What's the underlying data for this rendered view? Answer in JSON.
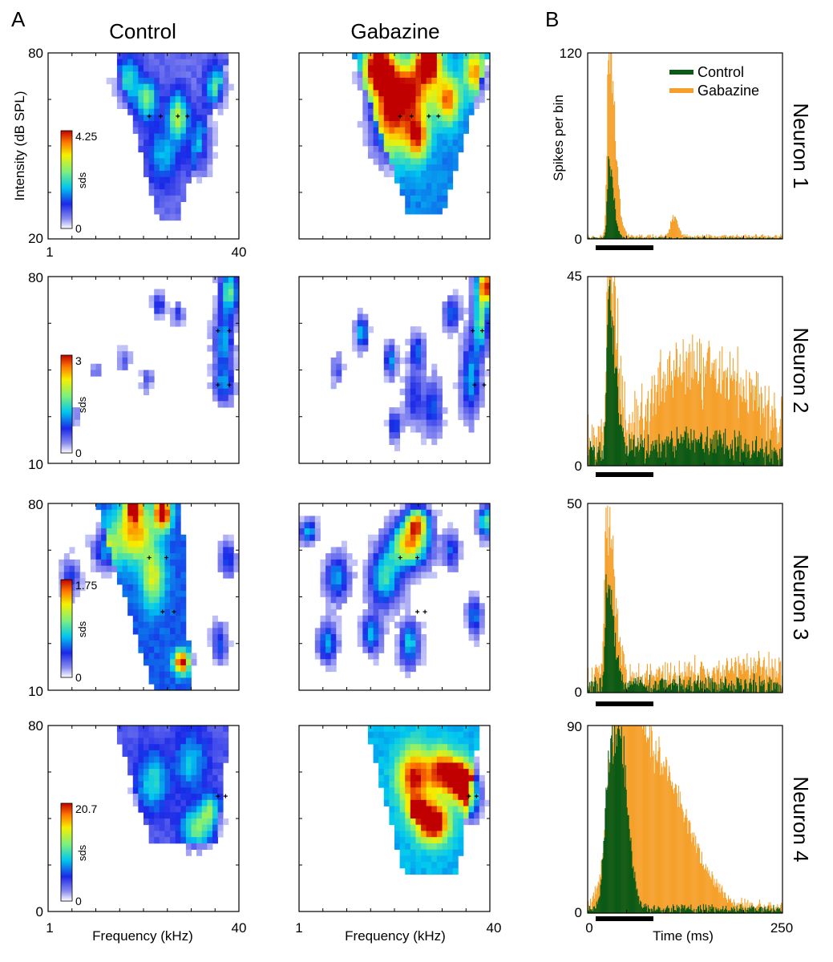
{
  "panel_labels": [
    "A",
    "B"
  ],
  "column_titles": [
    "Control",
    "Gabazine"
  ],
  "frequency_axis": {
    "label": "Frequency (kHz)",
    "min": "1",
    "max": "40"
  },
  "intensity_axis": {
    "label": "Intensity (dB SPL)"
  },
  "psth_axis": {
    "ylabel": "Spikes per bin",
    "xlabel": "Time (ms)",
    "xmin": "0",
    "xmax": "250"
  },
  "legend": [
    {
      "name": "Control",
      "color": "#0b5a16"
    },
    {
      "name": "Gabazine",
      "color": "#f5a02a"
    }
  ],
  "colorbar_unit": "sds",
  "colormap": "jet",
  "chart_data": [
    {
      "type": "heatmap",
      "neuron": 1,
      "condition": "Control",
      "ylim": [
        20,
        80
      ],
      "yticks": [
        "80",
        "20"
      ],
      "colorbar_range": [
        "0",
        "4.25"
      ],
      "xlim_khz": [
        1,
        40
      ],
      "hotspots": [
        [
          0.42,
          0.85,
          0.35,
          0.06,
          0.12
        ],
        [
          0.52,
          0.75,
          0.45,
          0.05,
          0.1
        ],
        [
          0.68,
          0.66,
          0.5,
          0.05,
          0.12
        ],
        [
          0.88,
          0.82,
          0.4,
          0.05,
          0.1
        ],
        [
          0.8,
          0.5,
          0.28,
          0.06,
          0.15
        ],
        [
          0.6,
          0.45,
          0.25,
          0.08,
          0.15
        ]
      ],
      "band": {
        "x0": [
          0.35,
          0.95
        ],
        "x1": [
          0.6,
          0.65
        ],
        "ybottom": 0.1,
        "level": 0.15
      },
      "markers": [
        [
          0.53,
          0.66
        ],
        [
          0.59,
          0.66
        ],
        [
          0.68,
          0.66
        ],
        [
          0.73,
          0.66
        ]
      ]
    },
    {
      "type": "heatmap",
      "neuron": 1,
      "condition": "Gabazine",
      "ylim": [
        20,
        80
      ],
      "xlim_khz": [
        1,
        40
      ],
      "hotspots": [
        [
          0.42,
          0.92,
          0.95,
          0.07,
          0.12
        ],
        [
          0.68,
          0.95,
          0.85,
          0.06,
          0.1
        ],
        [
          0.58,
          0.8,
          0.6,
          0.12,
          0.15
        ],
        [
          0.62,
          0.55,
          0.6,
          0.06,
          0.12
        ],
        [
          0.78,
          0.75,
          0.55,
          0.06,
          0.12
        ],
        [
          0.92,
          0.9,
          0.5,
          0.05,
          0.12
        ],
        [
          0.48,
          0.65,
          0.55,
          0.1,
          0.2
        ]
      ],
      "band": {
        "x0": [
          0.28,
          1.0
        ],
        "x1": [
          0.62,
          0.72
        ],
        "ybottom": 0.15,
        "level": 0.35
      },
      "markers": [
        [
          0.53,
          0.66
        ],
        [
          0.59,
          0.66
        ],
        [
          0.68,
          0.66
        ],
        [
          0.73,
          0.66
        ]
      ]
    },
    {
      "type": "heatmap",
      "neuron": 2,
      "condition": "Control",
      "ylim": [
        10,
        80
      ],
      "yticks": [
        "80",
        "10"
      ],
      "colorbar_range": [
        "0",
        "3"
      ],
      "xlim_khz": [
        1,
        40
      ],
      "hotspots": [
        [
          0.95,
          0.92,
          0.55,
          0.05,
          0.12
        ],
        [
          0.92,
          0.65,
          0.4,
          0.05,
          0.15
        ],
        [
          0.92,
          0.42,
          0.35,
          0.05,
          0.1
        ],
        [
          0.58,
          0.85,
          0.3,
          0.03,
          0.06
        ],
        [
          0.68,
          0.8,
          0.25,
          0.03,
          0.06
        ],
        [
          0.4,
          0.55,
          0.2,
          0.03,
          0.06
        ],
        [
          0.25,
          0.5,
          0.15,
          0.03,
          0.05
        ],
        [
          0.52,
          0.45,
          0.18,
          0.03,
          0.06
        ],
        [
          0.14,
          0.25,
          0.15,
          0.03,
          0.05
        ]
      ],
      "markers": [
        [
          0.89,
          0.71
        ],
        [
          0.95,
          0.71
        ],
        [
          0.89,
          0.42
        ],
        [
          0.95,
          0.42
        ]
      ]
    },
    {
      "type": "heatmap",
      "neuron": 2,
      "condition": "Gabazine",
      "ylim": [
        10,
        80
      ],
      "xlim_khz": [
        1,
        40
      ],
      "hotspots": [
        [
          0.98,
          0.95,
          0.95,
          0.05,
          0.1
        ],
        [
          0.95,
          0.75,
          0.55,
          0.04,
          0.15
        ],
        [
          0.9,
          0.45,
          0.4,
          0.05,
          0.2
        ],
        [
          0.33,
          0.7,
          0.45,
          0.03,
          0.08
        ],
        [
          0.48,
          0.55,
          0.4,
          0.03,
          0.08
        ],
        [
          0.62,
          0.6,
          0.3,
          0.04,
          0.1
        ],
        [
          0.5,
          0.2,
          0.35,
          0.03,
          0.08
        ],
        [
          0.7,
          0.3,
          0.3,
          0.05,
          0.15
        ],
        [
          0.6,
          0.35,
          0.25,
          0.05,
          0.15
        ],
        [
          0.2,
          0.5,
          0.2,
          0.03,
          0.08
        ],
        [
          0.8,
          0.8,
          0.35,
          0.04,
          0.08
        ]
      ],
      "markers": [
        [
          0.91,
          0.71
        ],
        [
          0.96,
          0.71
        ],
        [
          0.92,
          0.42
        ],
        [
          0.97,
          0.42
        ]
      ]
    },
    {
      "type": "heatmap",
      "neuron": 3,
      "condition": "Control",
      "ylim": [
        10,
        80
      ],
      "yticks": [
        "80",
        "10"
      ],
      "colorbar_range": [
        "0",
        "1.75"
      ],
      "xlim_khz": [
        1,
        40
      ],
      "hotspots": [
        [
          0.45,
          0.85,
          0.55,
          0.1,
          0.15
        ],
        [
          0.6,
          0.95,
          0.9,
          0.04,
          0.08
        ],
        [
          0.45,
          0.98,
          0.7,
          0.04,
          0.06
        ],
        [
          0.7,
          0.15,
          0.75,
          0.04,
          0.06
        ],
        [
          0.3,
          0.75,
          0.35,
          0.06,
          0.1
        ],
        [
          0.12,
          0.6,
          0.25,
          0.05,
          0.1
        ],
        [
          0.94,
          0.7,
          0.3,
          0.04,
          0.1
        ],
        [
          0.9,
          0.25,
          0.3,
          0.04,
          0.1
        ],
        [
          0.55,
          0.6,
          0.4,
          0.06,
          0.15
        ]
      ],
      "band": {
        "x0": [
          0.25,
          0.7
        ],
        "x1": [
          0.55,
          0.75
        ],
        "ybottom": 0.0,
        "level": 0.3
      },
      "markers": [
        [
          0.53,
          0.71
        ],
        [
          0.62,
          0.71
        ],
        [
          0.6,
          0.42
        ],
        [
          0.66,
          0.42
        ]
      ]
    },
    {
      "type": "heatmap",
      "neuron": 3,
      "condition": "Gabazine",
      "ylim": [
        10,
        80
      ],
      "xlim_khz": [
        1,
        40
      ],
      "hotspots": [
        [
          0.58,
          0.78,
          0.8,
          0.1,
          0.12
        ],
        [
          0.62,
          0.9,
          0.7,
          0.06,
          0.08
        ],
        [
          0.45,
          0.6,
          0.5,
          0.08,
          0.15
        ],
        [
          0.98,
          0.9,
          0.55,
          0.04,
          0.08
        ],
        [
          0.2,
          0.6,
          0.4,
          0.06,
          0.12
        ],
        [
          0.15,
          0.25,
          0.4,
          0.05,
          0.1
        ],
        [
          0.38,
          0.3,
          0.4,
          0.05,
          0.1
        ],
        [
          0.92,
          0.4,
          0.35,
          0.04,
          0.1
        ],
        [
          0.58,
          0.25,
          0.45,
          0.05,
          0.12
        ],
        [
          0.05,
          0.85,
          0.45,
          0.04,
          0.06
        ],
        [
          0.8,
          0.75,
          0.3,
          0.04,
          0.1
        ]
      ],
      "markers": [
        [
          0.53,
          0.71
        ],
        [
          0.62,
          0.71
        ],
        [
          0.62,
          0.42
        ],
        [
          0.66,
          0.42
        ]
      ]
    },
    {
      "type": "heatmap",
      "neuron": 4,
      "condition": "Control",
      "ylim": [
        0,
        80
      ],
      "yticks": [
        "80",
        "0"
      ],
      "colorbar_range": [
        "0",
        "20.7"
      ],
      "xlim_khz": [
        1,
        40
      ],
      "hotspots": [
        [
          0.78,
          0.45,
          0.4,
          0.08,
          0.1
        ],
        [
          0.85,
          0.55,
          0.35,
          0.05,
          0.08
        ],
        [
          0.55,
          0.7,
          0.3,
          0.08,
          0.15
        ],
        [
          0.75,
          0.8,
          0.25,
          0.08,
          0.15
        ]
      ],
      "band": {
        "x0": [
          0.35,
          0.95
        ],
        "x1": [
          0.65,
          0.85
        ],
        "ybottom": 0.38,
        "level": 0.18
      },
      "markers": [
        [
          0.89,
          0.62
        ],
        [
          0.93,
          0.62
        ]
      ]
    },
    {
      "type": "heatmap",
      "neuron": 4,
      "condition": "Gabazine",
      "ylim": [
        0,
        80
      ],
      "xlim_khz": [
        1,
        40
      ],
      "hotspots": [
        [
          0.85,
          0.7,
          0.97,
          0.06,
          0.09
        ],
        [
          0.7,
          0.48,
          0.85,
          0.08,
          0.1
        ],
        [
          0.62,
          0.55,
          0.92,
          0.04,
          0.05
        ],
        [
          0.6,
          0.72,
          0.6,
          0.08,
          0.15
        ],
        [
          0.75,
          0.75,
          0.6,
          0.08,
          0.12
        ],
        [
          0.9,
          0.6,
          0.5,
          0.05,
          0.1
        ]
      ],
      "band": {
        "x0": [
          0.35,
          0.95
        ],
        "x1": [
          0.6,
          0.8
        ],
        "ybottom": 0.2,
        "level": 0.4
      },
      "markers": [
        [
          0.89,
          0.62
        ],
        [
          0.93,
          0.62
        ]
      ]
    },
    {
      "type": "bar",
      "chart": "psth",
      "neuron": 1,
      "ylim": [
        0,
        120
      ],
      "yticks": [
        "120",
        "0"
      ],
      "xlim": [
        0,
        250
      ],
      "stimulus_ms": [
        0,
        75
      ],
      "bins": 250,
      "series": [
        {
          "name": "Gabazine",
          "baseline": 1.5,
          "noise": 1.0,
          "peaks": [
            [
              27,
              118,
              2.2,
              8
            ],
            [
              110,
              12,
              4,
              6
            ]
          ]
        },
        {
          "name": "Control",
          "baseline": 0.5,
          "noise": 0.5,
          "peaks": [
            [
              27,
              50,
              2.0,
              6
            ]
          ]
        }
      ]
    },
    {
      "type": "bar",
      "chart": "psth",
      "neuron": 2,
      "ylim": [
        0,
        45
      ],
      "yticks": [
        "45",
        "0"
      ],
      "xlim": [
        0,
        250
      ],
      "stimulus_ms": [
        0,
        75
      ],
      "bins": 250,
      "series": [
        {
          "name": "Gabazine",
          "baseline": 7,
          "noise": 5,
          "peaks": [
            [
              27,
              44,
              2.5,
              10
            ],
            [
              110,
              10,
              30,
              20
            ],
            [
              160,
              14,
              40,
              30
            ],
            [
              215,
              8,
              25,
              20
            ]
          ]
        },
        {
          "name": "Control",
          "baseline": 2,
          "noise": 3,
          "peaks": [
            [
              27,
              38,
              2.5,
              8
            ],
            [
              150,
              4,
              80,
              50
            ]
          ]
        }
      ]
    },
    {
      "type": "bar",
      "chart": "psth",
      "neuron": 3,
      "ylim": [
        0,
        50
      ],
      "yticks": [
        "50",
        "0"
      ],
      "xlim": [
        0,
        250
      ],
      "stimulus_ms": [
        0,
        75
      ],
      "bins": 250,
      "series": [
        {
          "name": "Gabazine",
          "baseline": 4,
          "noise": 3,
          "peaks": [
            [
              24,
              44,
              2.5,
              10
            ],
            [
              200,
              3,
              40,
              30
            ]
          ]
        },
        {
          "name": "Control",
          "baseline": 2,
          "noise": 2,
          "peaks": [
            [
              25,
              28,
              2.5,
              8
            ]
          ]
        }
      ]
    },
    {
      "type": "bar",
      "chart": "psth",
      "neuron": 4,
      "ylim": [
        0,
        90
      ],
      "yticks": [
        "90",
        "0"
      ],
      "xlim": [
        0,
        250
      ],
      "stimulus_ms": [
        0,
        75
      ],
      "bins": 250,
      "series": [
        {
          "name": "Gabazine",
          "baseline": 3,
          "noise": 2,
          "peaks": [
            [
              37,
              75,
              10,
              20
            ],
            [
              60,
              55,
              22,
              35
            ],
            [
              90,
              30,
              25,
              40
            ],
            [
              120,
              15,
              20,
              30
            ]
          ]
        },
        {
          "name": "Control",
          "baseline": 2,
          "noise": 1.5,
          "peaks": [
            [
              28,
              70,
              6,
              15
            ],
            [
              42,
              45,
              6,
              10
            ]
          ]
        }
      ]
    }
  ],
  "neuron_labels": [
    "Neuron 1",
    "Neuron 2",
    "Neuron 3",
    "Neuron 4"
  ]
}
